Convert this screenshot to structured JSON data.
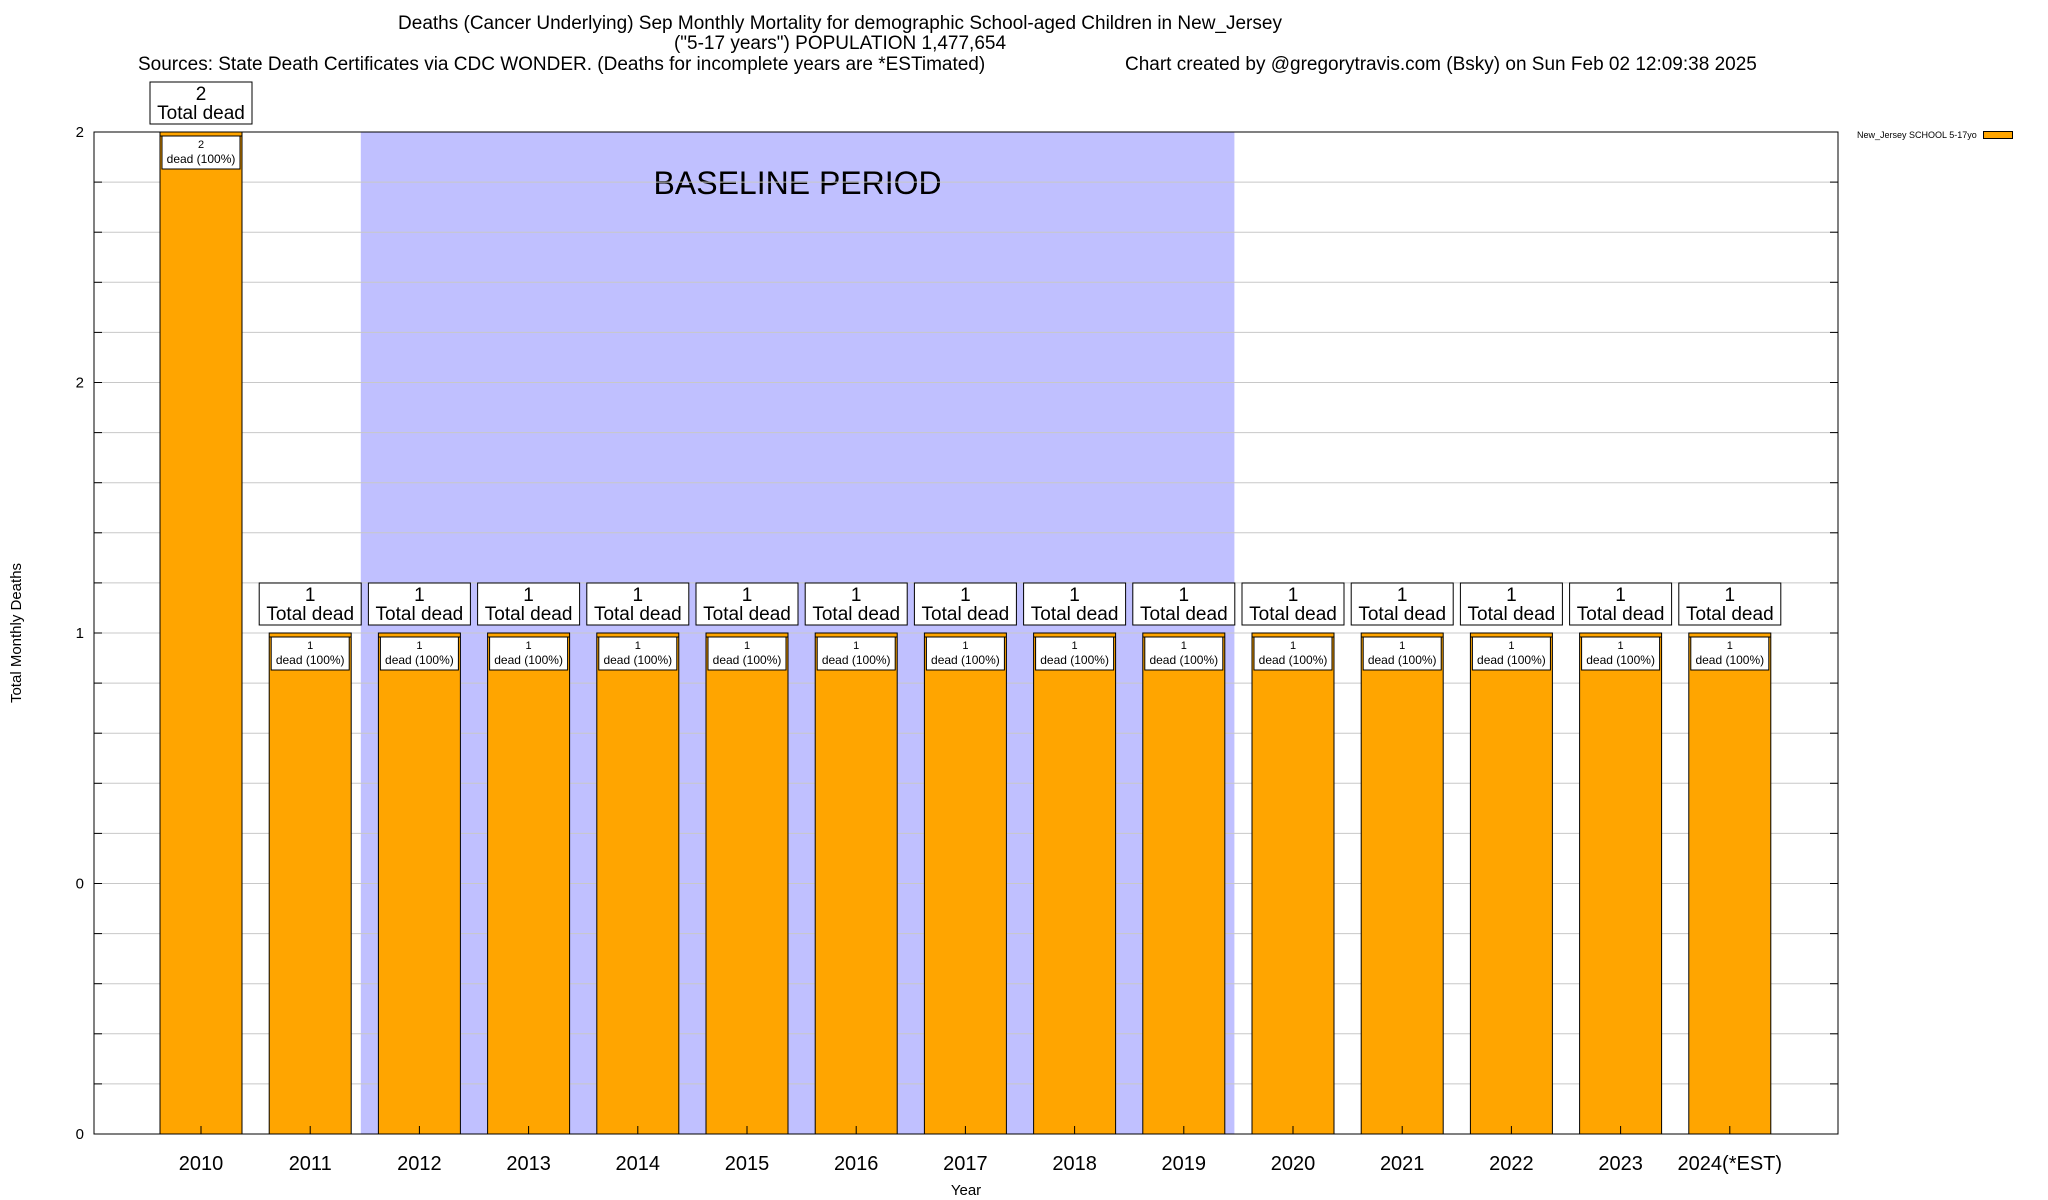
{
  "header": {
    "title_line1": "Deaths (Cancer Underlying) Sep Monthly Mortality for demographic School-aged Children in New_Jersey",
    "title_line2": "(\"5-17 years\") POPULATION 1,477,654",
    "sources": "Sources: State Death Certificates via CDC WONDER. (Deaths for incomplete years are *ESTimated)",
    "credit": "Chart created by @gregorytravis.com (Bsky) on Sun Feb 02 12:09:38 2025"
  },
  "chart_data": {
    "type": "bar",
    "xlabel": "Year",
    "ylabel": "Total Monthly Deaths",
    "ylim": [
      0,
      2
    ],
    "ytick_labels": [
      "0",
      "0",
      "1",
      "2",
      "2"
    ],
    "grid": true,
    "legend_position": "top-right",
    "baseline_label": "BASELINE PERIOD",
    "baseline_range": [
      "2012",
      "2019"
    ],
    "categories": [
      "2010",
      "2011",
      "2012",
      "2013",
      "2014",
      "2015",
      "2016",
      "2017",
      "2018",
      "2019",
      "2020",
      "2021",
      "2022",
      "2023",
      "2024(*EST)"
    ],
    "series": [
      {
        "name": "New_Jersey SCHOOL 5-17yo",
        "values": [
          2,
          1,
          1,
          1,
          1,
          1,
          1,
          1,
          1,
          1,
          1,
          1,
          1,
          1,
          1
        ]
      }
    ],
    "total_label_suffix": "Total dead",
    "segment_label_suffix": "dead (100%)",
    "colors": {
      "bar": "#ffa500",
      "baseline_band": "#c0c0ff"
    }
  }
}
